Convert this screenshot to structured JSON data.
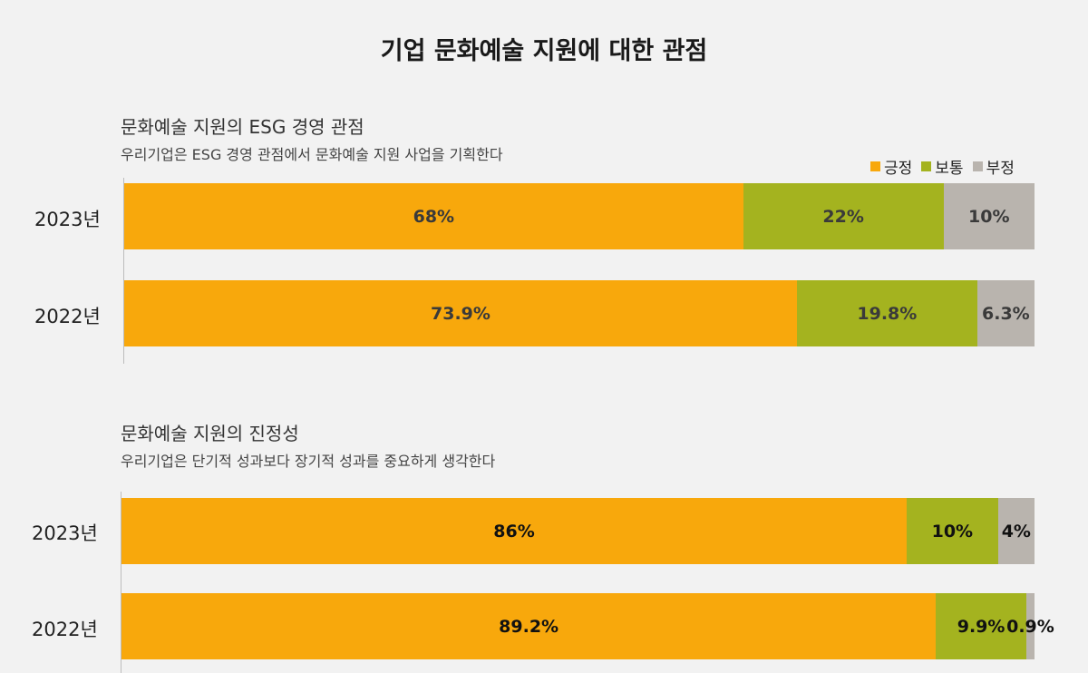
{
  "title": "기업 문화예술 지원에 대한 관점",
  "colors": {
    "positive": "#f8a80c",
    "neutral": "#a4b31f",
    "negative": "#b9b4ae"
  },
  "legend": [
    "긍정",
    "보통",
    "부정"
  ],
  "chart_data": [
    {
      "type": "bar",
      "orientation": "horizontal",
      "stacked": true,
      "title": "문화예술 지원의 ESG 경영 관점",
      "subtitle": "우리기업은 ESG 경영 관점에서 문화예술 지원 사업을 기획한다",
      "categories": [
        "2023년",
        "2022년"
      ],
      "series": [
        {
          "name": "긍정",
          "values": [
            68,
            73.9
          ],
          "labels": [
            "68%",
            "73.9%"
          ]
        },
        {
          "name": "보통",
          "values": [
            22,
            19.8
          ],
          "labels": [
            "22%",
            "19.8%"
          ]
        },
        {
          "name": "부정",
          "values": [
            10,
            6.3
          ],
          "labels": [
            "10%",
            "6.3%"
          ]
        }
      ],
      "xlim": [
        0,
        100
      ],
      "legend_position": "top-right"
    },
    {
      "type": "bar",
      "orientation": "horizontal",
      "stacked": true,
      "title": "문화예술 지원의 진정성",
      "subtitle": "우리기업은 단기적 성과보다 장기적 성과를 중요하게 생각한다",
      "categories": [
        "2023년",
        "2022년"
      ],
      "series": [
        {
          "name": "긍정",
          "values": [
            86,
            89.2
          ],
          "labels": [
            "86%",
            "89.2%"
          ]
        },
        {
          "name": "보통",
          "values": [
            10,
            9.9
          ],
          "labels": [
            "10%",
            "9.9%"
          ]
        },
        {
          "name": "부정",
          "values": [
            4,
            0.9
          ],
          "labels": [
            "4%",
            "0.9%"
          ]
        }
      ],
      "xlim": [
        0,
        100
      ]
    }
  ]
}
